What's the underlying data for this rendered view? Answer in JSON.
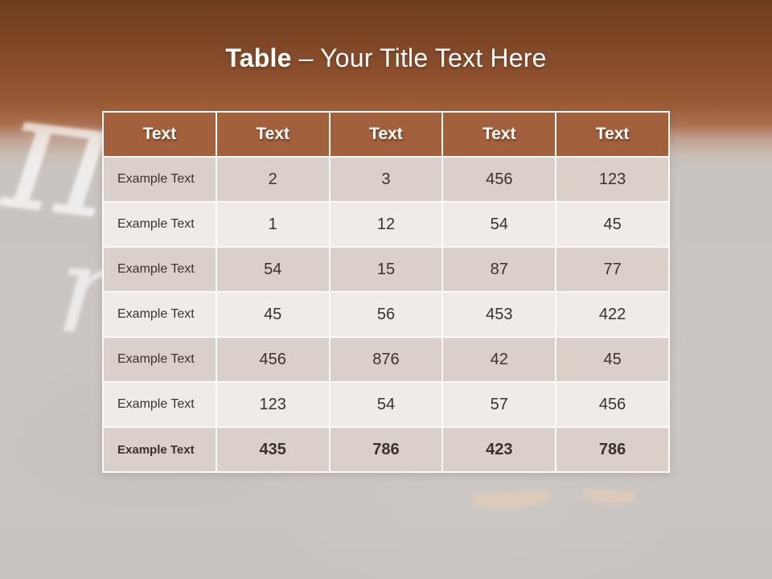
{
  "title": {
    "bold": "Table",
    "rest": "– Your Title Text Here"
  },
  "background": {
    "chalk_glyph_pi": "π",
    "chalk_glyph_n": "n"
  },
  "colors": {
    "top_brown": "#6e3d1f",
    "mid_brown": "#9a5a36",
    "canvas_gray": "#cbc6c2",
    "header_bg": "#a2603c",
    "row_odd_bg": "#dbcfca",
    "row_even_bg": "#f0ebe7",
    "cell_border": "#fcfbf9",
    "title_text": "#ffffff",
    "body_text": "#39322c"
  },
  "table": {
    "headers": [
      "Text",
      "Text",
      "Text",
      "Text",
      "Text"
    ],
    "rows": [
      {
        "label": "Example Text",
        "values": [
          "2",
          "3",
          "456",
          "123"
        ]
      },
      {
        "label": "Example Text",
        "values": [
          "1",
          "12",
          "54",
          "45"
        ]
      },
      {
        "label": "Example Text",
        "values": [
          "54",
          "15",
          "87",
          "77"
        ]
      },
      {
        "label": "Example Text",
        "values": [
          "45",
          "56",
          "453",
          "422"
        ]
      },
      {
        "label": "Example Text",
        "values": [
          "456",
          "876",
          "42",
          "45"
        ]
      },
      {
        "label": "Example Text",
        "values": [
          "123",
          "54",
          "57",
          "456"
        ]
      },
      {
        "label": "Example Text",
        "values": [
          "435",
          "786",
          "423",
          "786"
        ]
      }
    ]
  }
}
